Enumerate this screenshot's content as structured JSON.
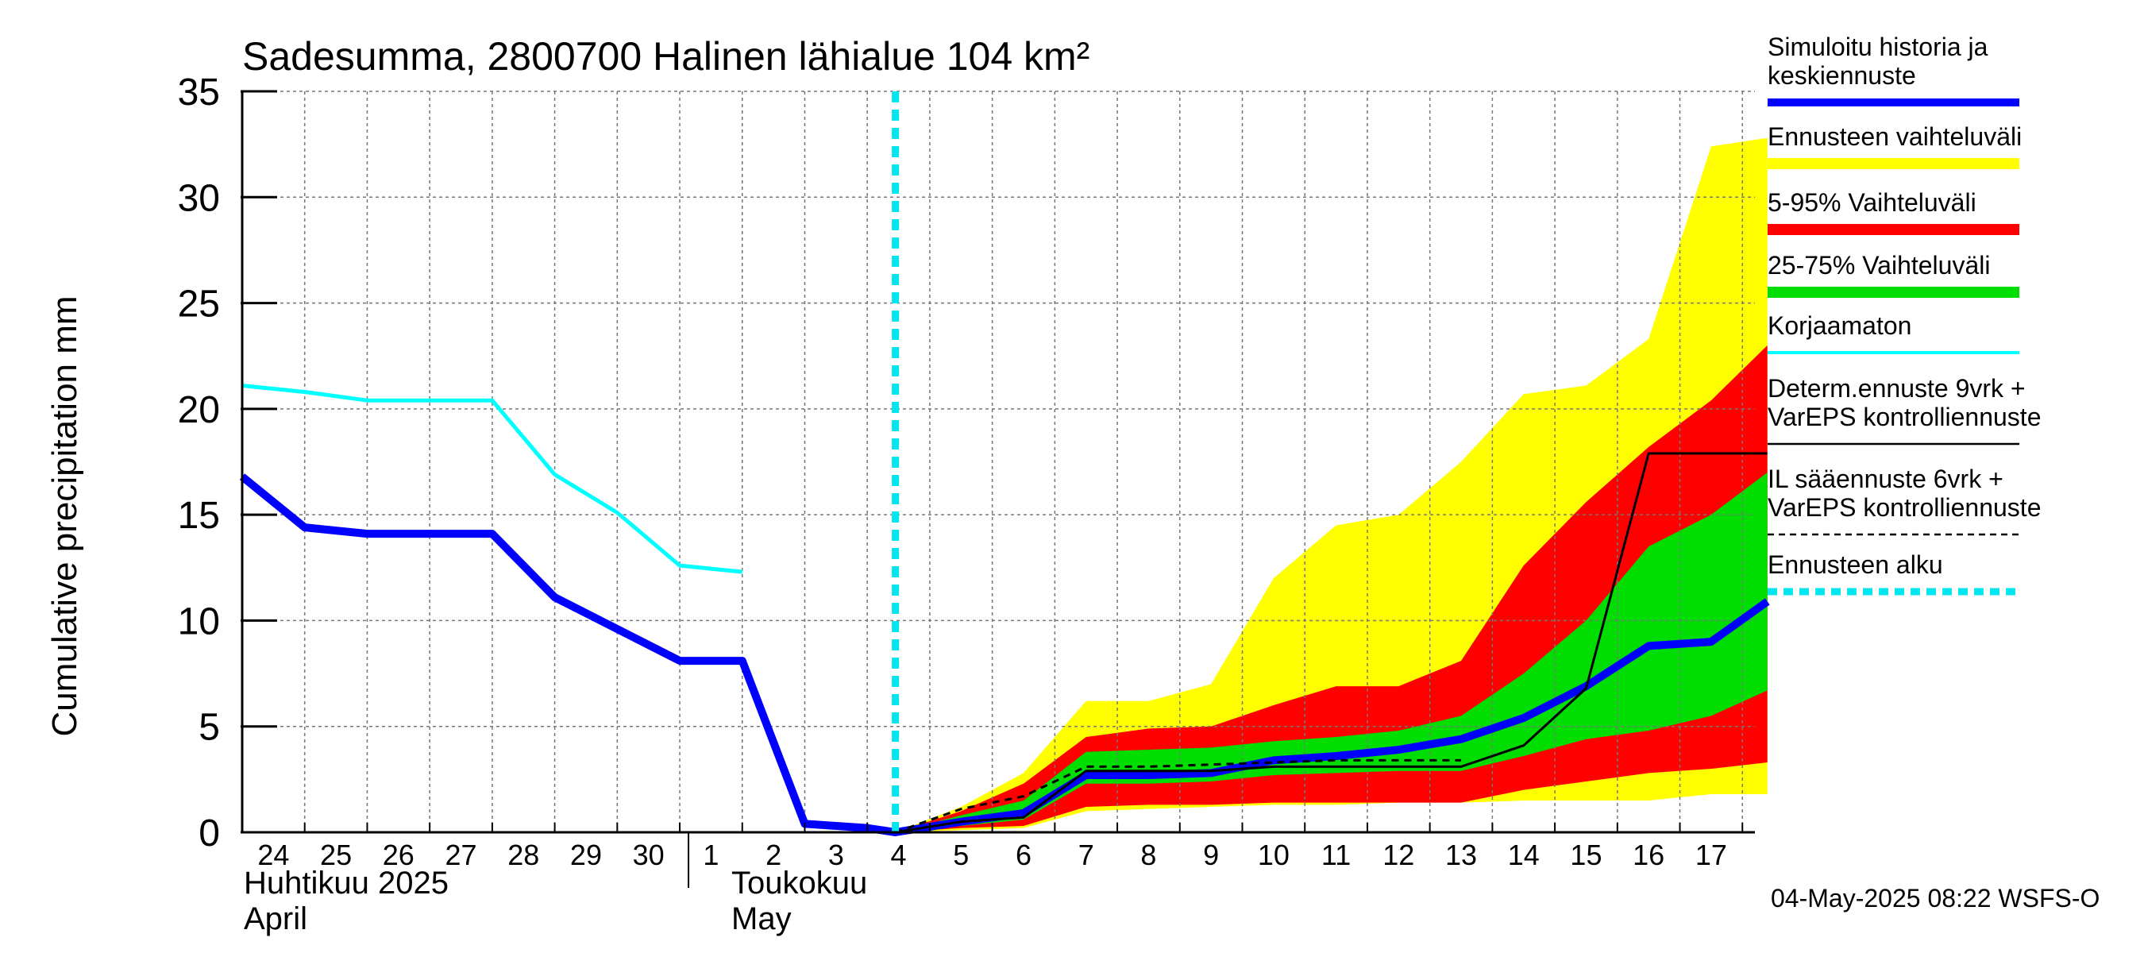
{
  "chart_data": {
    "type": "area",
    "title": "Sadesumma, 2800700 Halinen lähialue 104 km²",
    "ylabel": "Cumulative precipitation   mm",
    "ylim": [
      0,
      35
    ],
    "yticks": [
      0,
      5,
      10,
      15,
      20,
      25,
      30,
      35
    ],
    "xlim": [
      -0.5,
      23.7
    ],
    "grid": true,
    "day_labels": [
      "24",
      "25",
      "26",
      "27",
      "28",
      "29",
      "30",
      "1",
      "2",
      "3",
      "4",
      "5",
      "6",
      "7",
      "8",
      "9",
      "10",
      "11",
      "12",
      "13",
      "14",
      "15",
      "16",
      "17"
    ],
    "month_labels": [
      {
        "line1": "Huhtikuu  2025",
        "line2": "April",
        "at": -0.5
      },
      {
        "line1": "Toukokuu",
        "line2": "May",
        "at": 7.3
      }
    ],
    "forecast_start": 9.95,
    "timestamp": "04-May-2025 08:22 WSFS-O",
    "series": [
      {
        "name": "Simuloitu historia ja keskiennuste",
        "color": "#0000ff",
        "kind": "line",
        "width": 10,
        "points": [
          [
            -0.5,
            16.8
          ],
          [
            0.5,
            14.4
          ],
          [
            1.5,
            14.1
          ],
          [
            2.5,
            14.1
          ],
          [
            3.5,
            14.1
          ],
          [
            4.5,
            11.1
          ],
          [
            5.5,
            9.6
          ],
          [
            6.5,
            8.1
          ],
          [
            7.5,
            8.1
          ],
          [
            8.5,
            0.4
          ],
          [
            9.5,
            0.2
          ],
          [
            9.95,
            0.0
          ],
          [
            11.0,
            0.5
          ],
          [
            12.0,
            0.9
          ],
          [
            13.0,
            2.7
          ],
          [
            14.0,
            2.7
          ],
          [
            15.0,
            2.8
          ],
          [
            16.0,
            3.4
          ],
          [
            17.0,
            3.6
          ],
          [
            18.0,
            3.9
          ],
          [
            19.0,
            4.4
          ],
          [
            20.0,
            5.4
          ],
          [
            21.0,
            6.9
          ],
          [
            22.0,
            8.8
          ],
          [
            23.0,
            9.0
          ],
          [
            23.9,
            10.9
          ]
        ]
      },
      {
        "name": "Korjaamaton",
        "color": "#00ffff",
        "kind": "line",
        "width": 5,
        "points": [
          [
            -0.5,
            21.1
          ],
          [
            0.5,
            20.8
          ],
          [
            1.5,
            20.4
          ],
          [
            2.5,
            20.4
          ],
          [
            3.5,
            20.4
          ],
          [
            4.5,
            16.9
          ],
          [
            5.5,
            15.1
          ],
          [
            6.5,
            12.6
          ],
          [
            7.5,
            12.3
          ]
        ]
      },
      {
        "name": "Determ.ennuste 9vrk +\nVarEPS kontrolliennuste",
        "color": "#000000",
        "kind": "line",
        "width": 3,
        "points": [
          [
            9.95,
            0.0
          ],
          [
            11.0,
            0.5
          ],
          [
            12.0,
            0.7
          ],
          [
            13.0,
            2.9
          ],
          [
            14.0,
            2.9
          ],
          [
            15.0,
            2.9
          ],
          [
            16.0,
            3.1
          ],
          [
            17.0,
            3.1
          ],
          [
            18.0,
            3.1
          ],
          [
            19.0,
            3.1
          ],
          [
            20.0,
            4.1
          ],
          [
            21.0,
            6.8
          ],
          [
            22.0,
            17.9
          ],
          [
            23.0,
            17.9
          ],
          [
            23.9,
            17.9
          ]
        ]
      },
      {
        "name": "IL sääennuste 6vrk  +\n  VarEPS kontrolliennuste",
        "color": "#000000",
        "kind": "dashed",
        "width": 3,
        "points": [
          [
            9.95,
            0.0
          ],
          [
            11.0,
            1.1
          ],
          [
            12.0,
            1.7
          ],
          [
            13.0,
            3.1
          ],
          [
            14.0,
            3.1
          ],
          [
            15.0,
            3.2
          ],
          [
            16.0,
            3.3
          ],
          [
            17.0,
            3.4
          ],
          [
            18.0,
            3.4
          ],
          [
            19.0,
            3.4
          ]
        ]
      }
    ],
    "bands": [
      {
        "name": "Ennusteen vaihteluväli",
        "color": "#ffff00",
        "upper": [
          [
            9.95,
            0.0
          ],
          [
            11.0,
            1.2
          ],
          [
            12.0,
            2.8
          ],
          [
            13.0,
            6.2
          ],
          [
            14.0,
            6.2
          ],
          [
            15.0,
            7.0
          ],
          [
            16.0,
            12.0
          ],
          [
            17.0,
            14.5
          ],
          [
            18.0,
            15.0
          ],
          [
            19.0,
            17.5
          ],
          [
            20.0,
            20.7
          ],
          [
            21.0,
            21.1
          ],
          [
            22.0,
            23.3
          ],
          [
            23.0,
            32.4
          ],
          [
            23.9,
            32.8
          ]
        ],
        "lower": [
          [
            9.95,
            0.0
          ],
          [
            11.0,
            0.1
          ],
          [
            12.0,
            0.2
          ],
          [
            13.0,
            1.0
          ],
          [
            14.0,
            1.1
          ],
          [
            15.0,
            1.2
          ],
          [
            16.0,
            1.3
          ],
          [
            17.0,
            1.3
          ],
          [
            18.0,
            1.4
          ],
          [
            19.0,
            1.4
          ],
          [
            20.0,
            1.5
          ],
          [
            21.0,
            1.5
          ],
          [
            22.0,
            1.5
          ],
          [
            23.0,
            1.8
          ],
          [
            23.9,
            1.8
          ]
        ]
      },
      {
        "name": "5-95% Vaihteluväli",
        "color": "#ff0000",
        "upper": [
          [
            9.95,
            0.0
          ],
          [
            11.0,
            1.0
          ],
          [
            12.0,
            2.3
          ],
          [
            13.0,
            4.5
          ],
          [
            14.0,
            4.9
          ],
          [
            15.0,
            5.0
          ],
          [
            16.0,
            6.0
          ],
          [
            17.0,
            6.9
          ],
          [
            18.0,
            6.9
          ],
          [
            19.0,
            8.1
          ],
          [
            20.0,
            12.6
          ],
          [
            21.0,
            15.6
          ],
          [
            22.0,
            18.2
          ],
          [
            23.0,
            20.4
          ],
          [
            23.9,
            23.0
          ]
        ],
        "lower": [
          [
            9.95,
            0.0
          ],
          [
            11.0,
            0.2
          ],
          [
            12.0,
            0.3
          ],
          [
            13.0,
            1.2
          ],
          [
            14.0,
            1.3
          ],
          [
            15.0,
            1.3
          ],
          [
            16.0,
            1.4
          ],
          [
            17.0,
            1.4
          ],
          [
            18.0,
            1.4
          ],
          [
            19.0,
            1.4
          ],
          [
            20.0,
            2.0
          ],
          [
            21.0,
            2.4
          ],
          [
            22.0,
            2.8
          ],
          [
            23.0,
            3.0
          ],
          [
            23.9,
            3.3
          ]
        ]
      },
      {
        "name": "25-75% Vaihteluväli",
        "color": "#00dd00",
        "upper": [
          [
            9.95,
            0.0
          ],
          [
            11.0,
            0.8
          ],
          [
            12.0,
            1.5
          ],
          [
            13.0,
            3.8
          ],
          [
            14.0,
            3.9
          ],
          [
            15.0,
            4.0
          ],
          [
            16.0,
            4.3
          ],
          [
            17.0,
            4.5
          ],
          [
            18.0,
            4.8
          ],
          [
            19.0,
            5.5
          ],
          [
            20.0,
            7.5
          ],
          [
            21.0,
            10.0
          ],
          [
            22.0,
            13.5
          ],
          [
            23.0,
            15.0
          ],
          [
            23.9,
            17.0
          ]
        ],
        "lower": [
          [
            9.95,
            0.0
          ],
          [
            11.0,
            0.3
          ],
          [
            12.0,
            0.6
          ],
          [
            13.0,
            2.3
          ],
          [
            14.0,
            2.3
          ],
          [
            15.0,
            2.4
          ],
          [
            16.0,
            2.7
          ],
          [
            17.0,
            2.8
          ],
          [
            18.0,
            2.9
          ],
          [
            19.0,
            2.9
          ],
          [
            20.0,
            3.6
          ],
          [
            21.0,
            4.4
          ],
          [
            22.0,
            4.8
          ],
          [
            23.0,
            5.5
          ],
          [
            23.9,
            6.7
          ]
        ]
      }
    ],
    "legend": [
      {
        "label": "Simuloitu historia ja\nkeskiennuste",
        "color": "#0000ff",
        "style": "thick"
      },
      {
        "label": "Ennusteen vaihteluväli",
        "color": "#ffff00",
        "style": "band"
      },
      {
        "label": "5-95% Vaihteluväli",
        "color": "#ff0000",
        "style": "band"
      },
      {
        "label": "25-75% Vaihteluväli",
        "color": "#00dd00",
        "style": "band"
      },
      {
        "label": "Korjaamaton",
        "color": "#00ffff",
        "style": "thin"
      },
      {
        "label": "Determ.ennuste 9vrk  +\nVarEPS kontrolliennuste",
        "color": "#000000",
        "style": "solid"
      },
      {
        "label": "IL sääennuste 6vrk  +\n  VarEPS kontrolliennuste",
        "color": "#000000",
        "style": "dashed"
      },
      {
        "label": "Ennusteen alku",
        "color": "#00e5ee",
        "style": "dotted"
      }
    ]
  }
}
